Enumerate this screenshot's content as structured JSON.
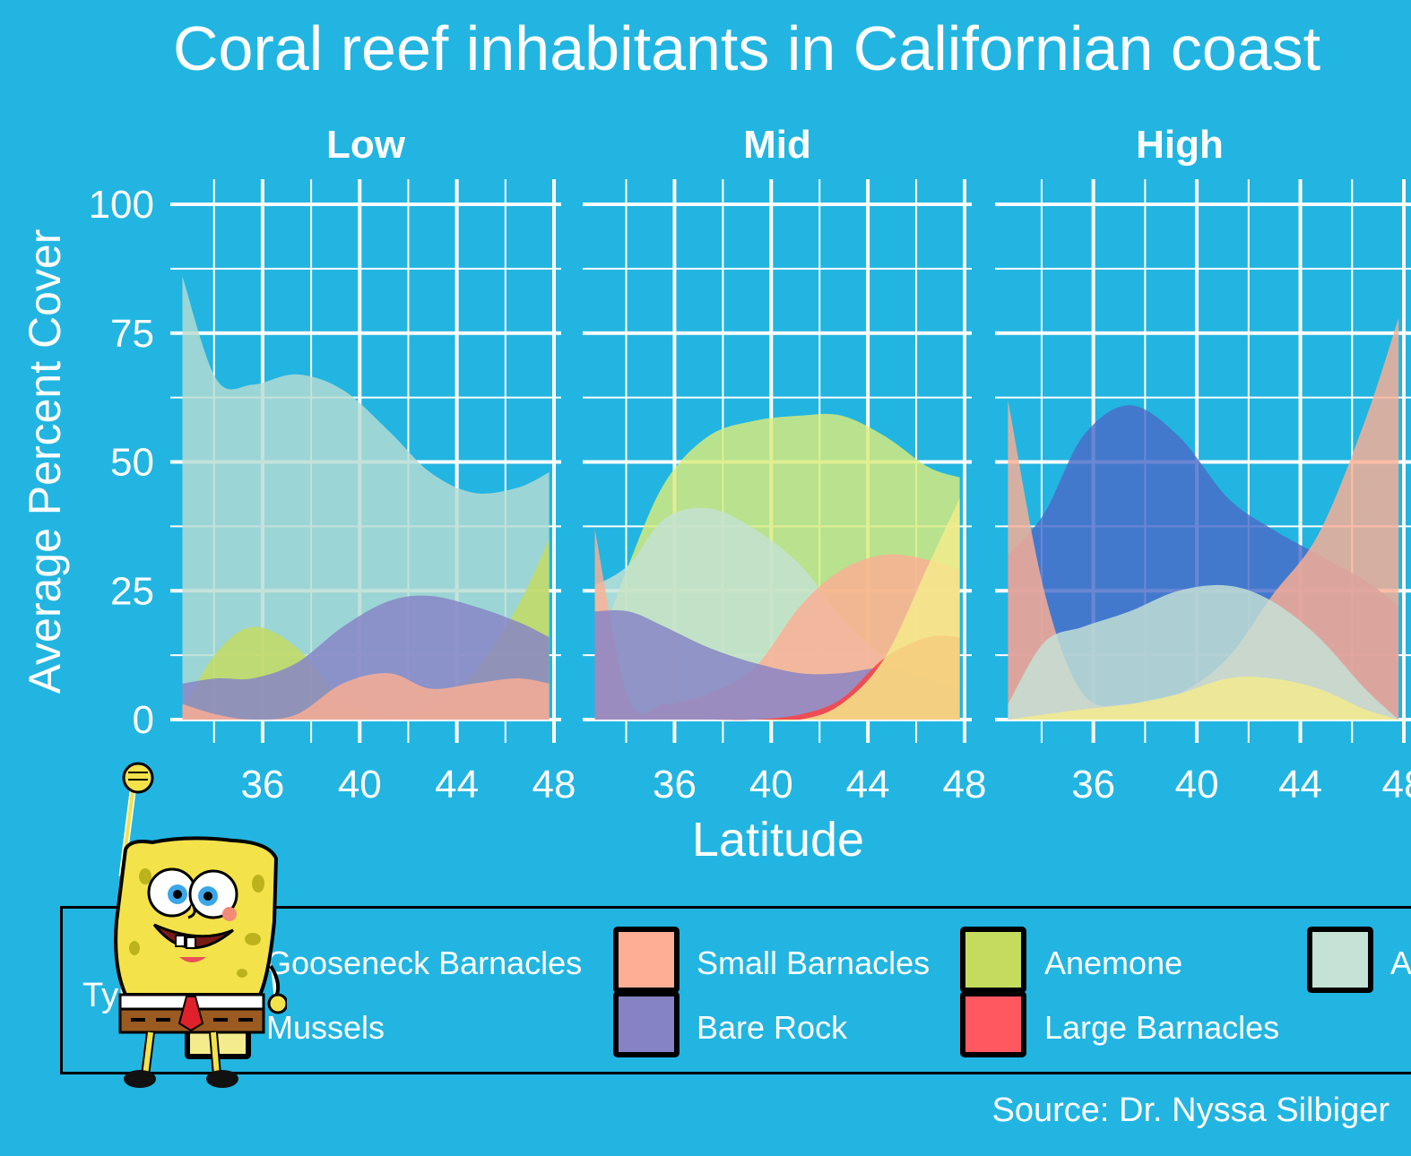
{
  "title": "Coral reef inhabitants in Californian coast",
  "source": "Source: Dr. Nyssa Silbiger",
  "legend": {
    "title": "Type",
    "items": [
      {
        "label": "Gooseneck Barnacles",
        "color": "#f4ec8c"
      },
      {
        "label": "Mussels",
        "color": "#f4ec8c"
      },
      {
        "label": "Small Barnacles",
        "color": "#fdae94"
      },
      {
        "label": "Bare Rock",
        "color": "#8682c6"
      },
      {
        "label": "Anemone",
        "color": "#c5db5e"
      },
      {
        "label": "Large Barnacles",
        "color": "#ff5860"
      },
      {
        "label": "Algae",
        "color": "#c5e2d6"
      }
    ]
  },
  "chart_data": {
    "type": "area",
    "xlabel": "Latitude",
    "ylabel": "Average Percent Cover",
    "x_ticks": [
      36,
      40,
      44,
      48
    ],
    "y_ticks": [
      0,
      25,
      50,
      75,
      100
    ],
    "xlim": [
      32.2,
      48.2
    ],
    "ylim": [
      0,
      100
    ],
    "grid": true,
    "legend_position": "bottom",
    "x": [
      32.7,
      34.1,
      35.6,
      37.4,
      39.3,
      41.2,
      42.9,
      44.7,
      46.5,
      47.8
    ],
    "panels": [
      {
        "name": "Low",
        "series": [
          {
            "name": "Algae",
            "color": "#b7dcd2",
            "values": [
              86,
              66,
              65,
              67,
              64,
              56,
              48,
              44,
              45,
              48
            ]
          },
          {
            "name": "Anemone",
            "color": "#c5db5e",
            "values": [
              2,
              13,
              18,
              14,
              4,
              1,
              3,
              9,
              22,
              35
            ]
          },
          {
            "name": "Bare Rock",
            "color": "#8682c6",
            "values": [
              7,
              8,
              8,
              11,
              18,
              23,
              24,
              22,
              19,
              16
            ]
          },
          {
            "name": "Small Barnacles",
            "color": "#fdae94",
            "values": [
              3,
              1,
              0,
              1,
              7,
              9,
              6,
              7,
              8,
              7
            ]
          }
        ]
      },
      {
        "name": "Mid",
        "series": [
          {
            "name": "Anemone",
            "color": "#d9eb7a",
            "values": [
              12,
              30,
              46,
              55,
              58,
              59,
              59,
              55,
              49,
              47
            ]
          },
          {
            "name": "Algae",
            "color": "#c5e2d6",
            "values": [
              26,
              30,
              39,
              41,
              37,
              30,
              20,
              12,
              6,
              4
            ]
          },
          {
            "name": "Small Barnacles",
            "color": "#fdae94",
            "values": [
              37,
              4,
              3,
              5,
              10,
              22,
              29,
              32,
              31,
              29
            ]
          },
          {
            "name": "Bare Rock",
            "color": "#8682c6",
            "values": [
              21,
              21,
              18,
              14,
              11,
              9,
              9,
              10,
              8,
              6
            ]
          },
          {
            "name": "Large Barnacles",
            "color": "#ff4040",
            "values": [
              0,
              0,
              0,
              0,
              0,
              1,
              4,
              12,
              16,
              16
            ]
          },
          {
            "name": "Gooseneck Barnacles",
            "color": "#f4ec8c",
            "values": [
              0,
              0,
              0,
              0,
              0,
              0,
              3,
              12,
              30,
              43
            ]
          }
        ]
      },
      {
        "name": "High",
        "series": [
          {
            "name": "Bare Rock",
            "color": "#4b6bc8",
            "values": [
              32,
              40,
              55,
              61,
              55,
              43,
              37,
              32,
              27,
              22
            ]
          },
          {
            "name": "Small Barnacles",
            "color": "#fdae94",
            "values": [
              62,
              25,
              5,
              3,
              5,
              12,
              24,
              36,
              58,
              78
            ]
          },
          {
            "name": "Algae",
            "color": "#c5e2d6",
            "values": [
              3,
              15,
              18,
              21,
              25,
              26,
              23,
              16,
              6,
              0
            ]
          },
          {
            "name": "Mussels",
            "color": "#f4ec8c",
            "values": [
              0,
              1,
              2,
              3,
              5,
              8,
              8,
              6,
              2,
              0
            ]
          }
        ]
      }
    ]
  }
}
